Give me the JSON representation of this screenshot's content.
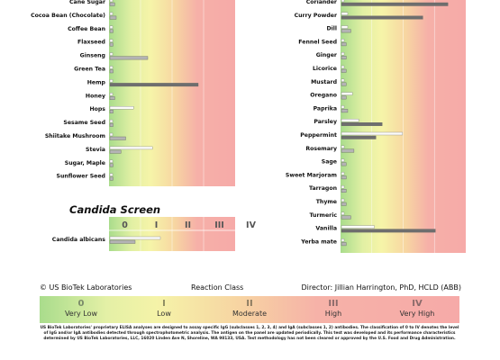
{
  "chart_data": [
    {
      "type": "bar",
      "panel": "Herbs, spices and other foods (left)",
      "categories": [
        "Cane Sugar",
        "Cocoa Bean (Chocolate)",
        "Coffee Bean",
        "Flaxseed",
        "Ginseng",
        "Green Tea",
        "Hemp",
        "Honey",
        "Hops",
        "Sesame Seed",
        "Shiitake Mushroom",
        "Stevia",
        "Sugar, Maple",
        "Sunflower Seed"
      ],
      "series": [
        {
          "name": "IgG",
          "values": [
            0.05,
            0.05,
            0.05,
            0.05,
            0.05,
            0.05,
            0.05,
            0.05,
            0.75,
            0.05,
            0.05,
            1.35,
            0.05,
            0.05
          ]
        },
        {
          "name": "IgA",
          "values": [
            0.15,
            0.2,
            0.1,
            0.1,
            1.2,
            0.1,
            2.8,
            0.15,
            0.1,
            0.1,
            0.5,
            0.35,
            0.1,
            0.1
          ]
        }
      ],
      "xlim": [
        0,
        4
      ],
      "ylabel": "",
      "xlabel": ""
    },
    {
      "type": "bar",
      "panel": "Spices (right)",
      "categories": [
        "Coriander",
        "Curry Powder",
        "Dill",
        "Fennel Seed",
        "Ginger",
        "Licorice",
        "Mustard",
        "Oregano",
        "Paprika",
        "Parsley",
        "Peppermint",
        "Rosemary",
        "Sage",
        "Sweet Marjoram",
        "Tarragon",
        "Thyme",
        "Turmeric",
        "Vanilla",
        "Yerba mate"
      ],
      "series": [
        {
          "name": "IgG",
          "values": [
            0.05,
            0.2,
            0.2,
            0.05,
            0.05,
            0.05,
            0.05,
            0.35,
            0.05,
            0.55,
            1.95,
            0.05,
            0.05,
            0.05,
            0.05,
            0.05,
            0.05,
            1.05,
            0.05
          ]
        },
        {
          "name": "IgA",
          "values": [
            3.4,
            2.6,
            0.3,
            0.15,
            0.15,
            0.15,
            0.15,
            0.15,
            0.2,
            1.3,
            1.1,
            0.4,
            0.15,
            0.15,
            0.15,
            0.15,
            0.3,
            3.0,
            0.15
          ]
        }
      ],
      "xlim": [
        0,
        4
      ],
      "ylabel": "",
      "xlabel": ""
    },
    {
      "type": "bar",
      "panel": "Candida Screen",
      "title": "Candida Screen",
      "categories": [
        "Candida albicans"
      ],
      "series": [
        {
          "name": "IgG",
          "values": [
            1.6
          ]
        },
        {
          "name": "IgA",
          "values": [
            0.8
          ]
        }
      ],
      "xlim": [
        0,
        4
      ],
      "tick_labels": [
        "0",
        "I",
        "II",
        "III",
        "IV"
      ]
    }
  ],
  "colors": {
    "class_0": "#a9dc8c",
    "class_1": "#f4f3a6",
    "class_2": "#f7d0a0",
    "class_3": "#f6aaa8",
    "class_4": "#f6aaa8",
    "igg_bar": "#fcfcfa",
    "iga_bar": "#b4b4b4",
    "iga_bar_dark": "#6e6e6e"
  },
  "footer": {
    "copyright": "© US BioTek Laboratories",
    "reaction_class": "Reaction Class",
    "director": "Director: Jillian Harrington, PhD, HCLD (ABB)"
  },
  "legend": [
    {
      "num": "0",
      "text": "Very Low"
    },
    {
      "num": "I",
      "text": "Low"
    },
    {
      "num": "II",
      "text": "Moderate"
    },
    {
      "num": "III",
      "text": "High"
    },
    {
      "num": "IV",
      "text": "Very High"
    }
  ],
  "disclaimer": "US BioTek Laboratories' proprietary ELISA analyses are designed to assay specific IgG (subclasses 1, 2, 3, 4) and IgA (subclasses 1, 2) antibodies. The classification of 0 to IV denotes the level of IgG and/or IgA antibodies detected through spectrophotometric analysis. The antigen on the panel are updated periodically. This test was developed and its performance characteristics determined by US BioTek Laboratories, LLC, 16020 Linden Ave N, Shoreline, WA 98133, USA. Test methodology has not been cleared or approved by the U.S. Food and Drug Administration."
}
